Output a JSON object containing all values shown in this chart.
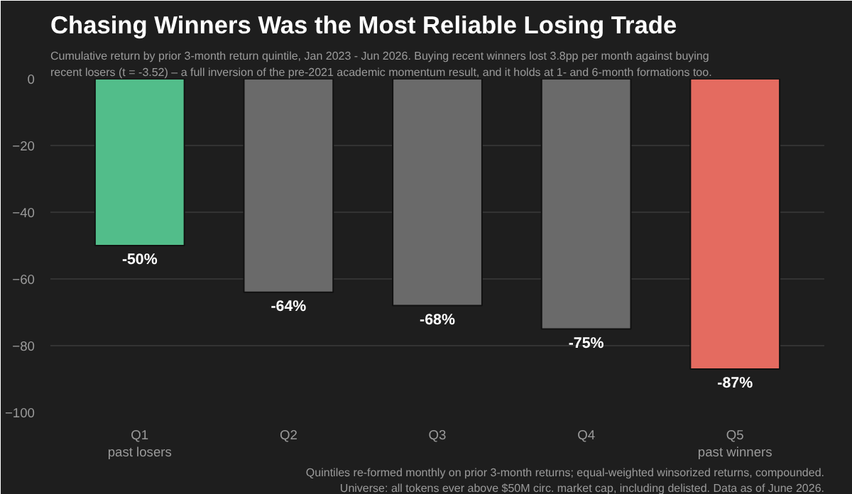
{
  "chart_data": {
    "type": "bar",
    "title": "Chasing Winners Was the Most Reliable Losing Trade",
    "subtitle": "Cumulative return by prior 3-month return quintile, Jan 2023 - Jun 2026. Buying recent winners lost 3.8pp per month against buying\nrecent losers (t = -3.52) – a full inversion of the pre-2021 academic momentum result, and it holds at 1- and 6-month formations too.",
    "categories": [
      "Q1\npast losers",
      "Q2",
      "Q3",
      "Q4",
      "Q5\npast winners"
    ],
    "values": [
      -50,
      -64,
      -68,
      -75,
      -87
    ],
    "colors": [
      "#52bd8a",
      "#6a6a6a",
      "#6a6a6a",
      "#6a6a6a",
      "#e46b60"
    ],
    "value_labels": [
      "-50%",
      "-64%",
      "-68%",
      "-75%",
      "-87%"
    ],
    "ylim": [
      -100,
      0
    ],
    "yticks": [
      -100,
      -80,
      -60,
      -40,
      -20,
      0
    ],
    "grid": "y",
    "annotations": [
      "Quintiles re-formed monthly on prior 3-month returns; equal-weighted winsorized returns, compounded.\nUniverse: all tokens ever above $50M circ. market cap, including delisted. Data as of June 2026."
    ]
  }
}
